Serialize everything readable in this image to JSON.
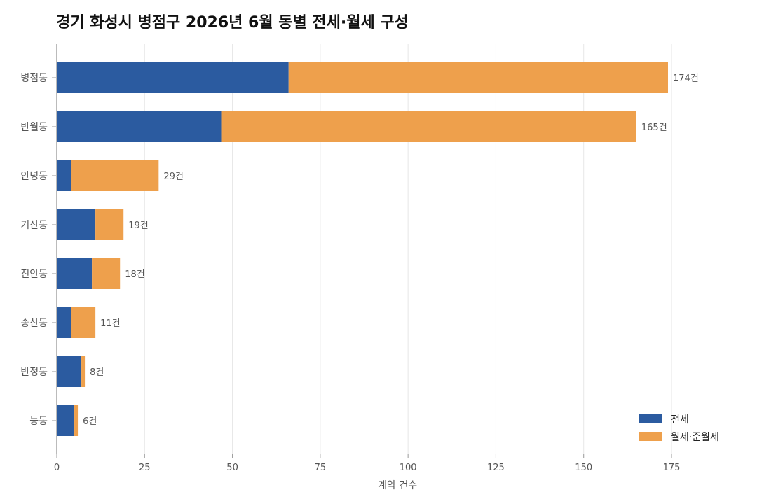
{
  "chart_data": {
    "type": "bar",
    "orientation": "horizontal",
    "stacked": true,
    "title": "경기 화성시 병점구 2026년 6월 동별 전세·월세 구성",
    "xlabel": "계약 건수",
    "ylabel": "",
    "xlim": [
      0,
      195
    ],
    "xticks": [
      0,
      25,
      50,
      75,
      100,
      125,
      150,
      175
    ],
    "grid": true,
    "legend_position": "bottom-right",
    "categories": [
      "병점동",
      "반월동",
      "안녕동",
      "기산동",
      "진안동",
      "송산동",
      "반정동",
      "능동"
    ],
    "series": [
      {
        "name": "전세",
        "color": "#2b5ba0",
        "values": [
          66,
          47,
          4,
          11,
          10,
          4,
          7,
          5
        ]
      },
      {
        "name": "월세·준월세",
        "color": "#eea04c",
        "values": [
          108,
          118,
          25,
          8,
          8,
          7,
          1,
          1
        ]
      }
    ],
    "totals": [
      174,
      165,
      29,
      19,
      18,
      11,
      8,
      6
    ],
    "total_labels": [
      "174건",
      "165건",
      "29건",
      "19건",
      "18건",
      "11건",
      "8건",
      "6건"
    ]
  }
}
